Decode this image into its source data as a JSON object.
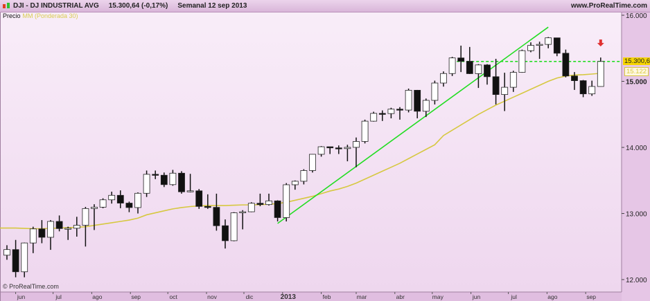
{
  "header": {
    "symbol": "DJI - DJ INDUSTRIAL AVG",
    "quote": "15.300,64 (-0,17%)",
    "period": "Semanal  12 sep 2013",
    "site": "www.ProRealTime.com",
    "icon": "candlestick-icon"
  },
  "legend": {
    "price_label": "Precio",
    "ma_label": "MM (Ponderada 30)"
  },
  "copyright": "© ProRealTime.com",
  "price_tags": {
    "last": "15.300,64",
    "ma": "15.122"
  },
  "colors": {
    "ma": "#d6c840",
    "trendline": "#22dd22",
    "resistance": "#22dd22",
    "arrow": "#e03030",
    "last_tag": "#f5d400",
    "bull_body": "#ffffff",
    "bear_body": "#111111"
  },
  "chart_data": {
    "type": "candlestick",
    "title": "DJI - DJ INDUSTRIAL AVG",
    "ylim": [
      11812,
      16042
    ],
    "yticks": [
      12000,
      13000,
      14000,
      15000,
      16000
    ],
    "ytick_labels": [
      "12.000",
      "13.000",
      "14.000",
      "15.000",
      "16.000"
    ],
    "x_labels": [
      {
        "label": "jun",
        "date": "2012-06-01"
      },
      {
        "label": "jul",
        "date": "2012-07-01"
      },
      {
        "label": "ago",
        "date": "2012-08-01"
      },
      {
        "label": "sep",
        "date": "2012-09-01"
      },
      {
        "label": "oct",
        "date": "2012-10-01"
      },
      {
        "label": "nov",
        "date": "2012-11-01"
      },
      {
        "label": "dic",
        "date": "2012-12-01"
      },
      {
        "label": "2013",
        "date": "2013-01-01",
        "bold": true
      },
      {
        "label": "feb",
        "date": "2013-02-01"
      },
      {
        "label": "mar",
        "date": "2013-03-01"
      },
      {
        "label": "abr",
        "date": "2013-04-01"
      },
      {
        "label": "may",
        "date": "2013-05-01"
      },
      {
        "label": "jun",
        "date": "2013-06-01"
      },
      {
        "label": "jul",
        "date": "2013-07-01"
      },
      {
        "label": "ago",
        "date": "2013-08-01"
      },
      {
        "label": "sep",
        "date": "2013-09-01"
      }
    ],
    "first_week": "2012-05-25",
    "ohlc": [
      [
        12369,
        12520,
        12300,
        12454
      ],
      [
        12454,
        12600,
        12035,
        12118
      ],
      [
        12118,
        12560,
        12035,
        12554
      ],
      [
        12554,
        12800,
        12400,
        12767
      ],
      [
        12767,
        12900,
        12550,
        12640
      ],
      [
        12640,
        12900,
        12450,
        12880
      ],
      [
        12880,
        12970,
        12730,
        12772
      ],
      [
        12772,
        12800,
        12600,
        12777
      ],
      [
        12777,
        12950,
        12650,
        12822
      ],
      [
        12822,
        13100,
        12500,
        13075
      ],
      [
        13075,
        13140,
        12750,
        13096
      ],
      [
        13096,
        13230,
        13080,
        13207
      ],
      [
        13207,
        13330,
        13150,
        13275
      ],
      [
        13275,
        13350,
        13080,
        13157
      ],
      [
        13157,
        13180,
        13020,
        13090
      ],
      [
        13090,
        13320,
        13000,
        13306
      ],
      [
        13306,
        13650,
        13250,
        13593
      ],
      [
        13593,
        13650,
        13520,
        13579
      ],
      [
        13579,
        13620,
        13400,
        13437
      ],
      [
        13437,
        13660,
        13420,
        13610
      ],
      [
        13610,
        13640,
        13300,
        13328
      ],
      [
        13328,
        13600,
        13320,
        13343
      ],
      [
        13343,
        13370,
        13070,
        13107
      ],
      [
        13107,
        13290,
        13070,
        13093
      ],
      [
        13093,
        13300,
        12740,
        12815
      ],
      [
        12815,
        12910,
        12470,
        12588
      ],
      [
        12588,
        13020,
        12580,
        13010
      ],
      [
        13010,
        13050,
        12760,
        13026
      ],
      [
        13026,
        13170,
        13020,
        13155
      ],
      [
        13155,
        13300,
        13110,
        13135
      ],
      [
        13135,
        13300,
        13120,
        13191
      ],
      [
        13191,
        13200,
        12880,
        12938
      ],
      [
        12938,
        13460,
        12880,
        13435
      ],
      [
        13435,
        13500,
        13360,
        13488
      ],
      [
        13488,
        13670,
        13440,
        13650
      ],
      [
        13650,
        13900,
        13620,
        13896
      ],
      [
        13896,
        14020,
        13860,
        14010
      ],
      [
        14010,
        14010,
        13900,
        13993
      ],
      [
        13993,
        14030,
        13900,
        13982
      ],
      [
        13982,
        14040,
        13790,
        14001
      ],
      [
        14001,
        14150,
        13700,
        14090
      ],
      [
        14090,
        14420,
        14060,
        14397
      ],
      [
        14397,
        14540,
        14390,
        14515
      ],
      [
        14515,
        14560,
        14400,
        14512
      ],
      [
        14512,
        14600,
        14440,
        14579
      ],
      [
        14579,
        14610,
        14420,
        14565
      ],
      [
        14565,
        14890,
        14530,
        14865
      ],
      [
        14865,
        14870,
        14440,
        14547
      ],
      [
        14547,
        14740,
        14460,
        14712
      ],
      [
        14712,
        15010,
        14650,
        14974
      ],
      [
        14974,
        15150,
        14920,
        15118
      ],
      [
        15118,
        15370,
        15080,
        15354
      ],
      [
        15354,
        15540,
        15140,
        15303
      ],
      [
        15303,
        15520,
        15110,
        15116
      ],
      [
        15116,
        15260,
        14900,
        15248
      ],
      [
        15248,
        15260,
        14950,
        15070
      ],
      [
        15070,
        15340,
        14650,
        14800
      ],
      [
        14800,
        15130,
        14550,
        14910
      ],
      [
        14910,
        15160,
        14840,
        15136
      ],
      [
        15136,
        15480,
        15130,
        15464
      ],
      [
        15464,
        15590,
        15440,
        15544
      ],
      [
        15544,
        15600,
        15340,
        15559
      ],
      [
        15559,
        15670,
        15500,
        15658
      ],
      [
        15658,
        15660,
        15380,
        15425
      ],
      [
        15425,
        15480,
        15060,
        15081
      ],
      [
        15081,
        15140,
        14870,
        15010
      ],
      [
        15010,
        15020,
        14760,
        14810
      ],
      [
        14810,
        15010,
        14780,
        14922
      ],
      [
        14922,
        15360,
        14920,
        15300
      ]
    ],
    "ma_name": "MM (Ponderada 30)",
    "ma": [
      12780,
      12780,
      12775,
      12770,
      12770,
      12775,
      12780,
      12785,
      12790,
      12800,
      12820,
      12840,
      12860,
      12880,
      12900,
      12930,
      12980,
      13010,
      13040,
      13070,
      13090,
      13105,
      13115,
      13120,
      13120,
      13120,
      13125,
      13130,
      13130,
      13135,
      13140,
      13150,
      13170,
      13200,
      13230,
      13260,
      13300,
      13340,
      13370,
      13410,
      13460,
      13520,
      13580,
      13640,
      13700,
      13760,
      13830,
      13900,
      13970,
      14040,
      14180,
      14260,
      14340,
      14420,
      14500,
      14570,
      14640,
      14700,
      14760,
      14820,
      14880,
      14940,
      15000,
      15050,
      15080,
      15095,
      15100,
      15110,
      15122
    ],
    "trendline": {
      "start": {
        "week": 31,
        "price": 12850
      },
      "end": {
        "week": 62,
        "price": 15820
      }
    },
    "resistance": {
      "price": 15300.64,
      "from_week": 52
    },
    "arrow": {
      "week": 68,
      "price": 15570,
      "direction": "down"
    }
  }
}
